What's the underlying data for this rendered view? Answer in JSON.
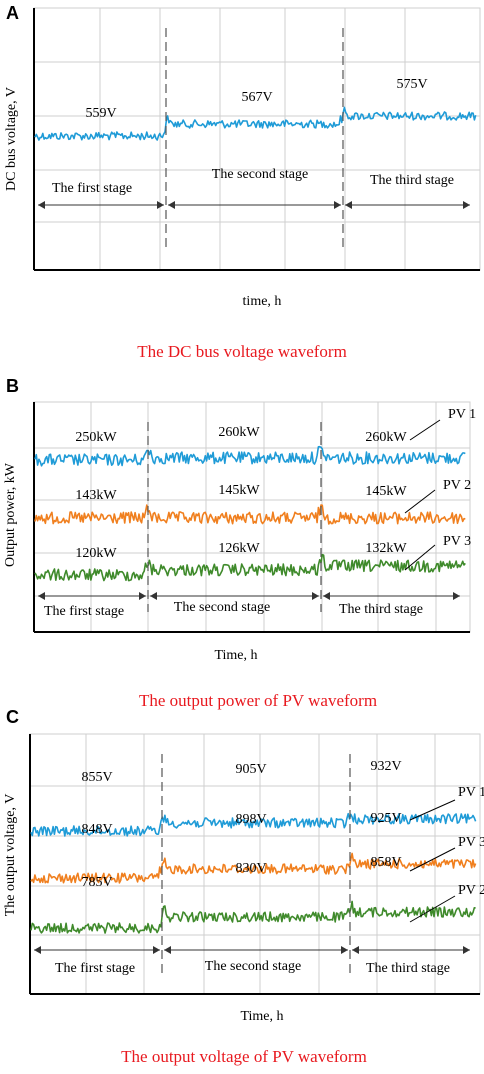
{
  "chart_data": [
    {
      "type": "line",
      "panel_letter": "A",
      "ylabel": "DC bus voltage, V",
      "xlabel": "time, h",
      "caption": "The DC bus voltage waveform",
      "stages": [
        "The first stage",
        "The second stage",
        "The third stage"
      ],
      "series": [
        {
          "name": "",
          "color": "#1f9bd7",
          "stage_values": [
            559,
            567,
            575
          ],
          "labels": [
            "559V",
            "567V",
            "575V"
          ]
        }
      ]
    },
    {
      "type": "line",
      "panel_letter": "B",
      "ylabel": "Output power, kW",
      "xlabel": "Time,  h",
      "caption": "The output power of PV waveform",
      "stages": [
        "The first stage",
        "The second stage",
        "The third stage"
      ],
      "series": [
        {
          "name": "PV 1",
          "color": "#1f9bd7",
          "stage_values": [
            250,
            260,
            260
          ],
          "labels": [
            "250kW",
            "260kW",
            "260kW"
          ]
        },
        {
          "name": "PV 2",
          "color": "#f07f1e",
          "stage_values": [
            143,
            145,
            145
          ],
          "labels": [
            "143kW",
            "145kW",
            "145kW"
          ]
        },
        {
          "name": "PV 3",
          "color": "#3f8a2b",
          "stage_values": [
            120,
            126,
            132
          ],
          "labels": [
            "120kW",
            "126kW",
            "132kW"
          ]
        }
      ]
    },
    {
      "type": "line",
      "panel_letter": "C",
      "ylabel": "The output voltage,  V",
      "xlabel": "Time,  h",
      "caption": "The output voltage of PV waveform",
      "stages": [
        "The first stage",
        "The second stage",
        "The third stage"
      ],
      "series": [
        {
          "name": "PV 1",
          "color": "#1f9bd7",
          "stage_values": [
            855,
            905,
            932
          ],
          "labels": [
            "855V",
            "905V",
            "932V"
          ]
        },
        {
          "name": "PV 3",
          "color": "#f07f1e",
          "stage_values": [
            848,
            898,
            925
          ],
          "labels": [
            "848V",
            "898V",
            "925V"
          ]
        },
        {
          "name": "PV 2",
          "color": "#3f8a2b",
          "stage_values": [
            785,
            830,
            858
          ],
          "labels": [
            "785V",
            "830V",
            "858V"
          ]
        }
      ]
    }
  ]
}
